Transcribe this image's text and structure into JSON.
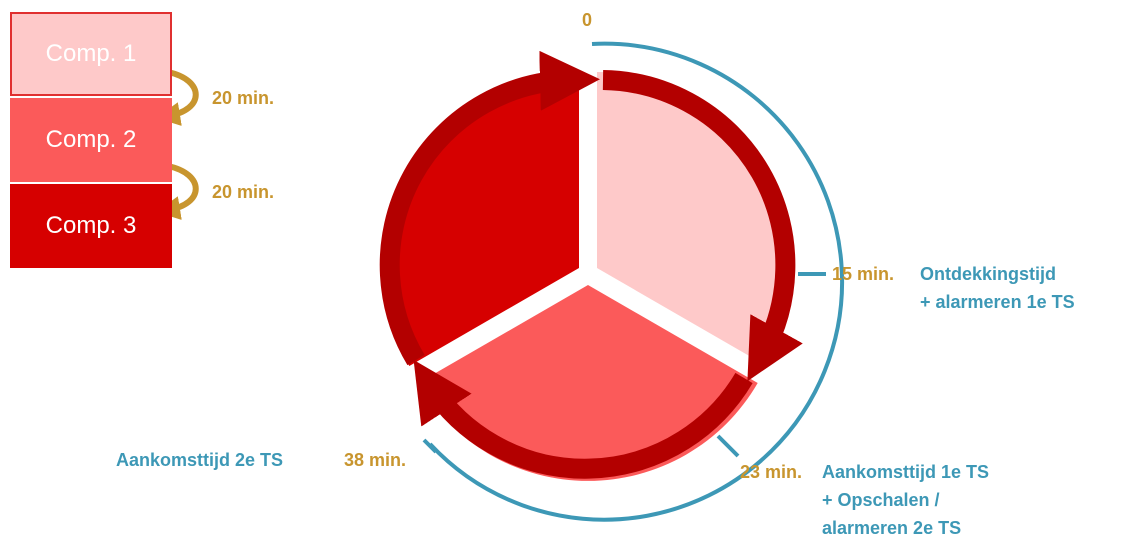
{
  "stack": {
    "items": [
      {
        "label": "Comp. 1",
        "color": "#fec9c9"
      },
      {
        "label": "Comp. 2",
        "color": "#fb5a5a"
      },
      {
        "label": "Comp. 3",
        "color": "#d60000"
      }
    ],
    "gaps": [
      "20 min.",
      "20 min."
    ]
  },
  "cycle": {
    "markers": {
      "start": "0",
      "m15": "15 min.",
      "m23": "23 min.",
      "m38": "38 min."
    },
    "events": {
      "e15_line1": "Ontdekkingstijd",
      "e15_line2": "+ alarmeren 1e TS",
      "e23_line1": "Aankomsttijd 1e TS",
      "e23_line2": "+ Opschalen /",
      "e23_line3": "alarmeren 2e TS",
      "e38": "Aankomsttijd 2e TS"
    }
  },
  "colors": {
    "light_pink": "#fec9c9",
    "salmon": "#fb5a5a",
    "red": "#d60000",
    "dark_red": "#b30000",
    "timeline_blue": "#3d98b6",
    "gold": "#c8952e"
  }
}
